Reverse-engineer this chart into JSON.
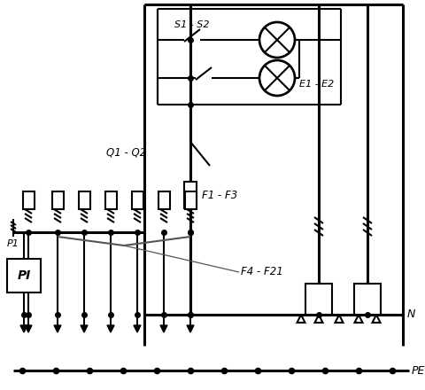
{
  "bg_color": "#ffffff",
  "line_color": "#000000",
  "lw": 1.5,
  "tlw": 2.2,
  "labels": {
    "S1S2": "S1 - S2",
    "E1E2": "E1 - E2",
    "Q1Q2": "Q1 - Q2",
    "F1F3": "F1 - F3",
    "F4F21": "F4 - F21",
    "P1": "P1",
    "PI": "PI",
    "N": "N",
    "PE": "PE"
  },
  "figsize": [
    4.8,
    4.4
  ],
  "dpi": 100
}
